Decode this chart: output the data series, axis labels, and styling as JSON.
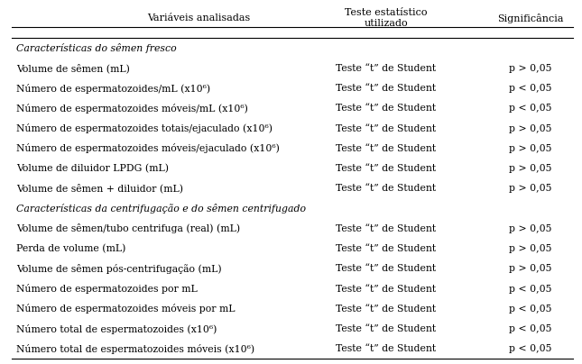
{
  "col_headers": [
    "Variáveis analisadas",
    "Teste estatístico\nutilizado",
    "Significância"
  ],
  "rows": [
    {
      "text": "Características do sêmen fresco",
      "italic": true,
      "test": "",
      "sig": ""
    },
    {
      "text": "Volume de sêmen (mL)",
      "italic": false,
      "test": "Teste “t” de Student",
      "sig": "p > 0,05"
    },
    {
      "text": "Número de espermatozoides/mL (x10⁶)",
      "italic": false,
      "test": "Teste “t” de Student",
      "sig": "p < 0,05"
    },
    {
      "text": "Número de espermatozoides móveis/mL (x10⁶)",
      "italic": false,
      "test": "Teste “t” de Student",
      "sig": "p < 0,05"
    },
    {
      "text": "Número de espermatozoides totais/ejaculado (x10⁶)",
      "italic": false,
      "test": "Teste “t” de Student",
      "sig": "p > 0,05"
    },
    {
      "text": "Número de espermatozoides móveis/ejaculado (x10⁶)",
      "italic": false,
      "test": "Teste “t” de Student",
      "sig": "p > 0,05"
    },
    {
      "text": "Volume de diluidor LPDG (mL)",
      "italic": false,
      "test": "Teste “t” de Student",
      "sig": "p > 0,05"
    },
    {
      "text": "Volume de sêmen + diluidor (mL)",
      "italic": false,
      "test": "Teste “t” de Student",
      "sig": "p > 0,05"
    },
    {
      "text": "Características da centrifugação e do sêmen centrifugado",
      "italic": true,
      "test": "",
      "sig": ""
    },
    {
      "text": "Volume de sêmen/tubo centrifuga (real) (mL)",
      "italic": false,
      "test": "Teste “t” de Student",
      "sig": "p > 0,05"
    },
    {
      "text": "Perda de volume (mL)",
      "italic": false,
      "test": "Teste “t” de Student",
      "sig": "p > 0,05"
    },
    {
      "text": "Volume de sêmen pós-centrifugação (mL)",
      "italic": false,
      "test": "Teste “t” de Student",
      "sig": "p > 0,05"
    },
    {
      "text": "Número de espermatozoides por mL",
      "italic": false,
      "test": "Teste “t” de Student",
      "sig": "p < 0,05"
    },
    {
      "text": "Número de espermatozoides móveis por mL",
      "italic": false,
      "test": "Teste “t” de Student",
      "sig": "p < 0,05"
    },
    {
      "text": "Número total de espermatozoides (x10⁶)",
      "italic": false,
      "test": "Teste “t” de Student",
      "sig": "p < 0,05"
    },
    {
      "text": "Número total de espermatozoides móveis (x10⁶)",
      "italic": false,
      "test": "Teste “t” de Student",
      "sig": "p < 0,05"
    }
  ],
  "font_size": 7.8,
  "header_font_size": 8.0,
  "background_color": "#ffffff",
  "text_color": "#000000",
  "line_color": "#000000"
}
